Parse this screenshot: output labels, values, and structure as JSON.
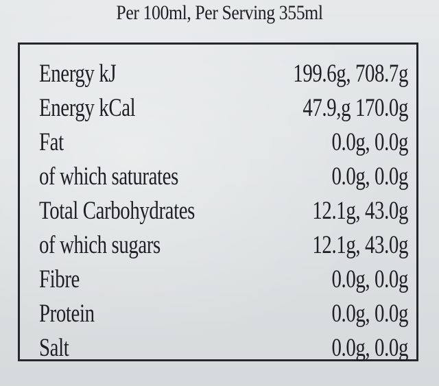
{
  "label": {
    "header": "Per 100ml, Per Serving 355ml",
    "rows": [
      {
        "name": "Energy kJ",
        "value": "199.6g, 708.7g"
      },
      {
        "name": "Energy kCal",
        "value": "47.9,g 170.0g"
      },
      {
        "name": "Fat",
        "value": "0.0g, 0.0g"
      },
      {
        "name": "of which saturates",
        "value": "0.0g, 0.0g"
      },
      {
        "name": "Total Carbohydrates",
        "value": "12.1g, 43.0g"
      },
      {
        "name": "of which sugars",
        "value": "12.1g, 43.0g"
      },
      {
        "name": "Fibre",
        "value": "0.0g, 0.0g"
      },
      {
        "name": "Protein",
        "value": "0.0g, 0.0g"
      },
      {
        "name": "Salt",
        "value": "0.0g, 0.0g"
      }
    ]
  }
}
